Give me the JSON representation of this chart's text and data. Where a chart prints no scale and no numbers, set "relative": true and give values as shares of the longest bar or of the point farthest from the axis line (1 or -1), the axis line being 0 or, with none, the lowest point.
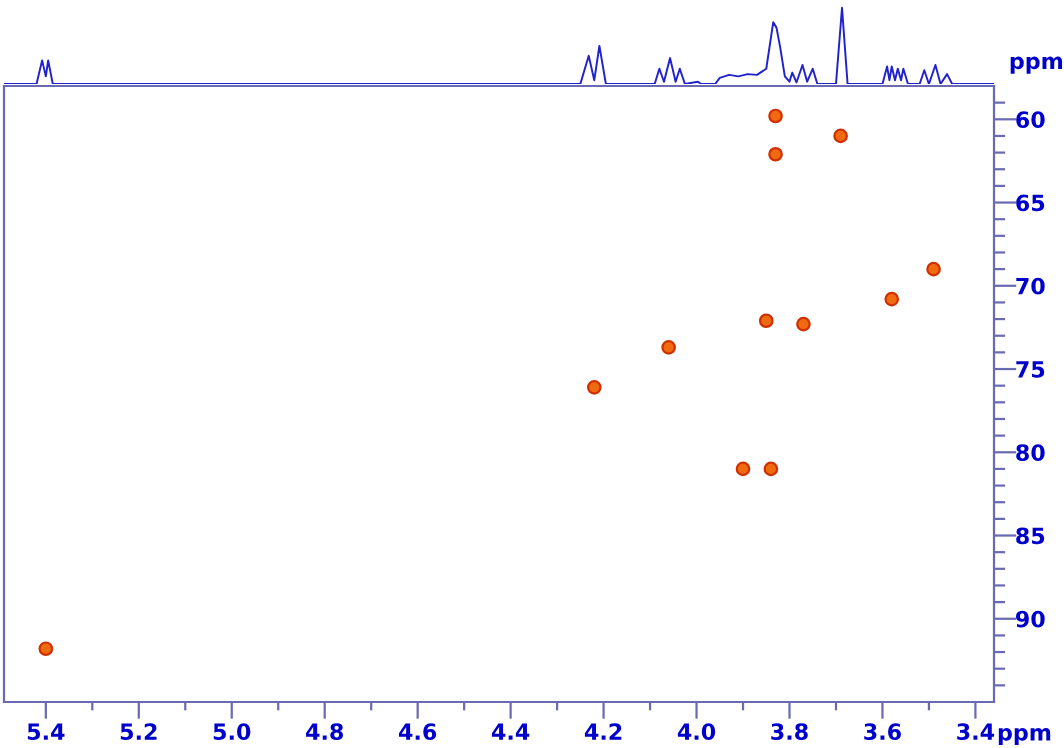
{
  "chart_data": [
    {
      "type": "line",
      "relative": true,
      "xlim": [
        5.49,
        3.36
      ],
      "series": [
        {
          "color": "#2222cc",
          "x": [
            5.49,
            5.42,
            5.408,
            5.4,
            5.395,
            5.385,
            4.25,
            4.232,
            4.22,
            4.209,
            4.195,
            4.09,
            4.08,
            4.07,
            4.057,
            4.045,
            4.036,
            4.025,
            3.997,
            3.99,
            3.96,
            3.95,
            3.93,
            3.91,
            3.89,
            3.87,
            3.85,
            3.835,
            3.828,
            3.82,
            3.81,
            3.8,
            3.794,
            3.785,
            3.772,
            3.762,
            3.75,
            3.74,
            3.7,
            3.687,
            3.675,
            3.6,
            3.59,
            3.585,
            3.58,
            3.573,
            3.567,
            3.56,
            3.555,
            3.545,
            3.52,
            3.51,
            3.5,
            3.486,
            3.475,
            3.461,
            3.45,
            3.36
          ],
          "values": [
            0,
            0,
            0.31,
            0.1,
            0.31,
            0,
            0,
            0.37,
            0.05,
            0.5,
            0,
            0,
            0.2,
            0.03,
            0.34,
            0.03,
            0.2,
            0,
            0.03,
            0,
            0,
            0.08,
            0.12,
            0.1,
            0.13,
            0.12,
            0.2,
            0.81,
            0.74,
            0.48,
            0.1,
            0.03,
            0.15,
            0.02,
            0.25,
            0.03,
            0.2,
            0,
            0,
            1,
            0,
            0,
            0.23,
            0.05,
            0.23,
            0.05,
            0.2,
            0.05,
            0.2,
            0,
            0,
            0.18,
            0,
            0.25,
            0,
            0.13,
            0,
            0
          ]
        }
      ]
    },
    {
      "type": "scatter",
      "xlabel": "ppm",
      "ylabel": "ppm",
      "marker": "circle",
      "grid": false,
      "xlim": [
        5.49,
        3.36
      ],
      "ylim": [
        95,
        58
      ],
      "xticks": [
        5.4,
        5.2,
        {
          "value": 5.0,
          "label": "5.0"
        },
        4.8,
        4.6,
        4.4,
        4.2,
        {
          "value": 4.0,
          "label": "4.0"
        },
        3.8,
        3.6,
        3.4,
        {
          "value": 5.3,
          "label": null
        },
        {
          "value": 5.1,
          "label": null
        },
        {
          "value": 4.9,
          "label": null
        },
        {
          "value": 4.7,
          "label": null
        },
        {
          "value": 4.5,
          "label": null
        },
        {
          "value": 4.3,
          "label": null
        },
        {
          "value": 4.1,
          "label": null
        },
        {
          "value": 3.9,
          "label": null
        },
        {
          "value": 3.7,
          "label": null
        },
        {
          "value": 3.5,
          "label": null
        }
      ],
      "yticks": [
        60,
        65,
        70,
        75,
        80,
        85,
        90,
        {
          "value": 59,
          "label": null
        },
        {
          "value": 61,
          "label": null
        },
        {
          "value": 62,
          "label": null
        },
        {
          "value": 63,
          "label": null
        },
        {
          "value": 64,
          "label": null
        },
        {
          "value": 66,
          "label": null
        },
        {
          "value": 67,
          "label": null
        },
        {
          "value": 68,
          "label": null
        },
        {
          "value": 69,
          "label": null
        },
        {
          "value": 71,
          "label": null
        },
        {
          "value": 72,
          "label": null
        },
        {
          "value": 73,
          "label": null
        },
        {
          "value": 74,
          "label": null
        },
        {
          "value": 76,
          "label": null
        },
        {
          "value": 77,
          "label": null
        },
        {
          "value": 78,
          "label": null
        },
        {
          "value": 79,
          "label": null
        },
        {
          "value": 81,
          "label": null
        },
        {
          "value": 82,
          "label": null
        },
        {
          "value": 83,
          "label": null
        },
        {
          "value": 84,
          "label": null
        },
        {
          "value": 86,
          "label": null
        },
        {
          "value": 87,
          "label": null
        },
        {
          "value": 88,
          "label": null
        },
        {
          "value": 89,
          "label": null
        },
        {
          "value": 91,
          "label": null
        },
        {
          "value": 92,
          "label": null
        },
        {
          "value": 93,
          "label": null
        },
        {
          "value": 94,
          "label": null
        }
      ],
      "series": [
        {
          "color": "#f06a10",
          "x": [
            3.83,
            3.69,
            3.83,
            3.49,
            3.58,
            3.85,
            3.77,
            4.06,
            4.22,
            3.9,
            3.84,
            5.4
          ],
          "values": [
            59.8,
            61.0,
            62.1,
            69.0,
            70.8,
            72.1,
            72.3,
            73.7,
            76.1,
            81.0,
            81.0,
            91.8
          ]
        }
      ]
    }
  ]
}
